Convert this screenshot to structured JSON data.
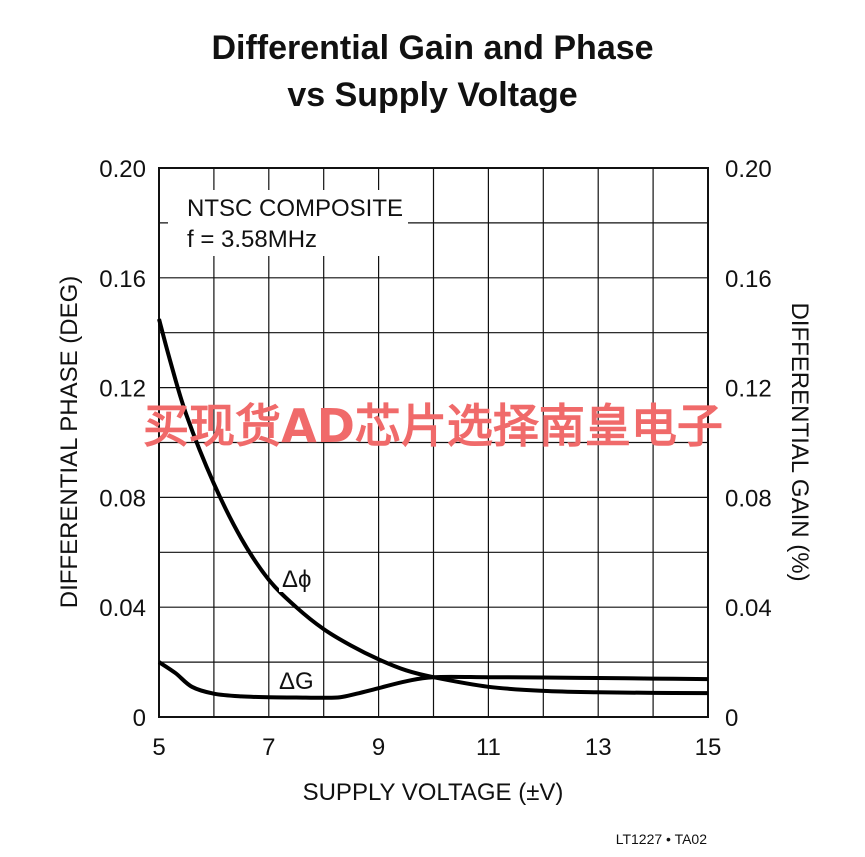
{
  "chart_data": {
    "type": "line",
    "title_line1": "Differential Gain and Phase",
    "title_line2": "vs Supply Voltage",
    "xlabel": "SUPPLY VOLTAGE (±V)",
    "ylabel_left": "DIFFERENTIAL PHASE (DEG)",
    "ylabel_right": "DIFFERENTIAL GAIN (%)",
    "xlim": [
      5,
      15
    ],
    "ylim": [
      0,
      0.2
    ],
    "x_ticks": [
      "5",
      "7",
      "9",
      "11",
      "13",
      "15"
    ],
    "y_ticks_left": [
      "0",
      "0.04",
      "0.08",
      "0.12",
      "0.16",
      "0.20"
    ],
    "y_ticks_right": [
      "0",
      "0.04",
      "0.08",
      "0.12",
      "0.16",
      "0.20"
    ],
    "grid": true,
    "annotation_line1": "NTSC COMPOSITE",
    "annotation_line2": "f = 3.58MHz",
    "series": [
      {
        "name": "Δϕ",
        "x": [
          5,
          5.2,
          5.5,
          6,
          6.5,
          7,
          7.5,
          8,
          8.5,
          9,
          9.5,
          10,
          11,
          12,
          13,
          14,
          15
        ],
        "y": [
          0.145,
          0.13,
          0.11,
          0.085,
          0.065,
          0.05,
          0.04,
          0.032,
          0.026,
          0.021,
          0.017,
          0.0145,
          0.011,
          0.0095,
          0.009,
          0.0088,
          0.0087
        ]
      },
      {
        "name": "ΔG",
        "x": [
          5,
          5.3,
          5.6,
          6,
          6.5,
          7,
          7.5,
          8,
          8.3,
          8.6,
          9,
          9.5,
          10,
          11,
          12,
          13,
          14,
          15
        ],
        "y": [
          0.02,
          0.016,
          0.011,
          0.0085,
          0.0075,
          0.0072,
          0.0071,
          0.007,
          0.0072,
          0.0085,
          0.0105,
          0.013,
          0.0145,
          0.0145,
          0.0144,
          0.0142,
          0.014,
          0.0138
        ]
      }
    ]
  },
  "footer": "LT1227 • TA02",
  "watermark": "买现货AD芯片选择南皇电子"
}
